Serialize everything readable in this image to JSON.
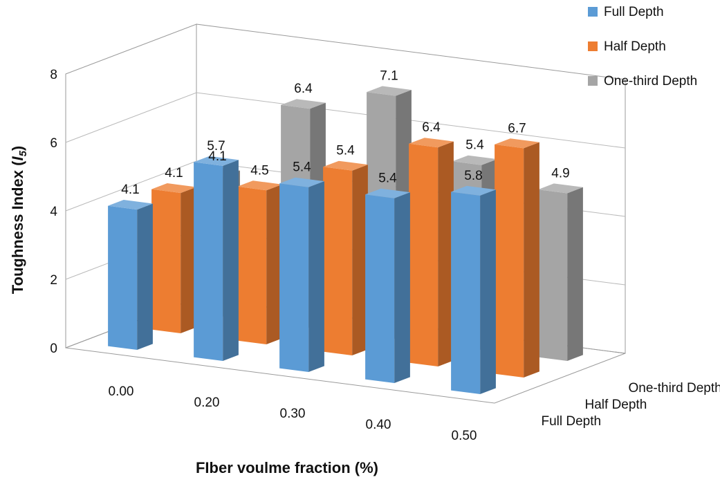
{
  "chart_data": {
    "type": "bar",
    "subtype": "3d-clustered-depth",
    "categories": [
      "0.00",
      "0.20",
      "0.30",
      "0.40",
      "0.50"
    ],
    "series": [
      {
        "name": "Full Depth",
        "values": [
          4.1,
          5.7,
          5.4,
          5.4,
          5.8
        ],
        "color": "#5b9bd5"
      },
      {
        "name": "Half Depth",
        "values": [
          4.1,
          4.5,
          5.4,
          6.4,
          6.7
        ],
        "color": "#ed7d31"
      },
      {
        "name": "One-third Depth",
        "values": [
          4.1,
          6.4,
          7.1,
          5.4,
          4.9
        ],
        "color": "#a5a5a5"
      }
    ],
    "depth_labels": [
      "Full Depth",
      "Half Depth",
      "One-third Depth"
    ],
    "xlabel": "FIber voulme fraction (%)",
    "ylabel": "Toughness Index (",
    "ylabel_sym": "I",
    "ylabel_sub": "5",
    "ylabel_end": ")",
    "ylim": [
      0,
      8
    ],
    "yticks": [
      "0",
      "2",
      "4",
      "6",
      "8"
    ],
    "grid": true,
    "legend_position": "top-right"
  }
}
